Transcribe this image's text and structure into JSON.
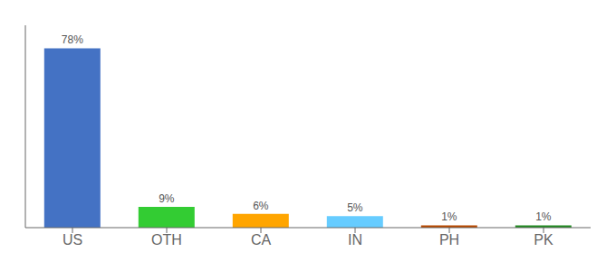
{
  "chart_data": {
    "type": "bar",
    "categories": [
      "US",
      "OTH",
      "CA",
      "IN",
      "PH",
      "PK"
    ],
    "values": [
      78,
      9,
      6,
      5,
      1,
      1
    ],
    "value_labels": [
      "78%",
      "9%",
      "6%",
      "5%",
      "1%",
      "1%"
    ],
    "colors": [
      "#4472c4",
      "#33cc33",
      "#ffa500",
      "#66ccff",
      "#b94a00",
      "#228B22"
    ],
    "ylim": [
      0,
      88
    ],
    "yticks": [],
    "data_labels": true,
    "tick_labels": "x",
    "grid": false
  }
}
